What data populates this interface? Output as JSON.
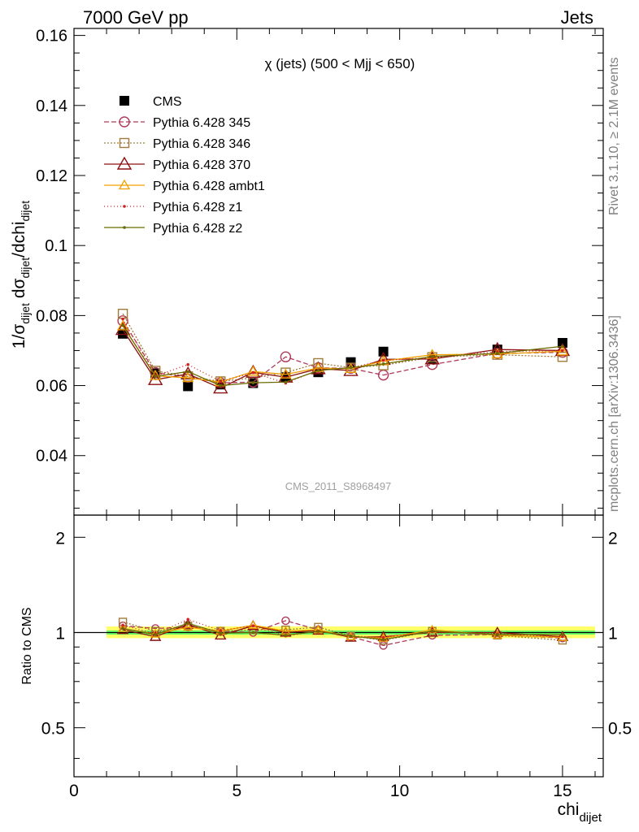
{
  "header": {
    "left": "7000 GeV pp",
    "right": "Jets",
    "side_right_top": "Rivet 3.1.10, ≥ 2.1M events",
    "side_right_bottom": "mcplots.cern.ch [arXiv:1306.3436]"
  },
  "plot_title": "χ (jets) (500 < Mjj <  650)",
  "watermark": "CMS_2011_S8968497",
  "colors": {
    "band_yellow": "#ffff66",
    "band_green": "#66ff66"
  },
  "chart_data": [
    {
      "type": "line",
      "ylabel_parts": {
        "a": "1/σ",
        "a_sub": "dijet",
        "b": " dσ",
        "b_sub": "dijet",
        "c": "/dchi",
        "c_sub": "dijet"
      },
      "xlim": [
        0,
        16.25
      ],
      "ylim": [
        0.023,
        0.162
      ],
      "yticks": [
        0.04,
        0.06,
        0.08,
        0.1,
        0.12,
        0.14,
        0.16
      ],
      "ytick_labels": [
        "0.04",
        "0.06",
        "0.08",
        "0.1",
        "0.12",
        "0.14",
        "0.16"
      ],
      "x": [
        1.5,
        2.5,
        3.5,
        4.5,
        5.5,
        6.5,
        7.5,
        8.5,
        9.5,
        11,
        13,
        15
      ],
      "series": [
        {
          "name": "CMS",
          "color": "#000000",
          "marker": "square-filled",
          "dash": "none",
          "values": [
            0.0748,
            0.0635,
            0.0598,
            0.0603,
            0.0607,
            0.0624,
            0.0638,
            0.0667,
            0.0697,
            0.0675,
            0.0703,
            0.0722
          ]
        },
        {
          "name": "Pythia 6.428 345",
          "color": "#b03a58",
          "marker": "circle-open",
          "dash": "6,3",
          "values": [
            0.0785,
            0.0637,
            0.0624,
            0.0608,
            0.061,
            0.0682,
            0.0651,
            0.0649,
            0.063,
            0.066,
            0.0692,
            0.0695
          ]
        },
        {
          "name": "Pythia 6.428 346",
          "color": "#a07c3c",
          "marker": "square-open",
          "dash": "2,2",
          "values": [
            0.0805,
            0.0642,
            0.0626,
            0.0612,
            0.0622,
            0.0637,
            0.0664,
            0.0651,
            0.0658,
            0.0681,
            0.0688,
            0.0682
          ]
        },
        {
          "name": "Pythia 6.428 370",
          "color": "#8b1010",
          "marker": "triangle-open-large",
          "dash": "none",
          "values": [
            0.076,
            0.0617,
            0.0633,
            0.0593,
            0.0638,
            0.0624,
            0.0648,
            0.0643,
            0.0675,
            0.0676,
            0.0703,
            0.07
          ]
        },
        {
          "name": "Pythia 6.428 ambt1",
          "color": "#f0a000",
          "marker": "triangle-open",
          "dash": "none",
          "values": [
            0.077,
            0.0628,
            0.0622,
            0.061,
            0.064,
            0.0632,
            0.065,
            0.0648,
            0.067,
            0.0688,
            0.069,
            0.0698
          ]
        },
        {
          "name": "Pythia 6.428 z1",
          "color": "#d42020",
          "marker": "dot",
          "dash": "1,3",
          "values": [
            0.079,
            0.0627,
            0.066,
            0.0612,
            0.0637,
            0.0607,
            0.0644,
            0.0651,
            0.0672,
            0.068,
            0.0697,
            0.07
          ]
        },
        {
          "name": "Pythia 6.428 z2",
          "color": "#6b6b00",
          "marker": "dot",
          "dash": "none",
          "values": [
            0.0772,
            0.0626,
            0.064,
            0.06,
            0.0608,
            0.061,
            0.0643,
            0.0651,
            0.0662,
            0.0683,
            0.0692,
            0.0712
          ]
        }
      ]
    },
    {
      "type": "line",
      "ylabel": "Ratio to CMS",
      "xlabel_main": "chi",
      "xlabel_sub": "dijet",
      "xlim": [
        0,
        16.25
      ],
      "ylim": [
        0.35,
        2.35
      ],
      "log_y": true,
      "yticks": [
        0.5,
        1,
        2
      ],
      "ytick_labels": [
        "0.5",
        "1",
        "2"
      ],
      "xticks": [
        0,
        5,
        10,
        15
      ],
      "xtick_labels": [
        "0",
        "5",
        "10",
        "15"
      ],
      "x": [
        1.5,
        2.5,
        3.5,
        4.5,
        5.5,
        6.5,
        7.5,
        8.5,
        9.5,
        11,
        13,
        15
      ],
      "band_x": [
        1.0,
        16.0
      ],
      "band_yellow": [
        0.96,
        1.045
      ],
      "band_green": [
        0.985,
        1.015
      ],
      "series": [
        {
          "name": "Pythia 6.428 345",
          "values": [
            1.05,
            1.03,
            1.04,
            1.01,
            1.0,
            1.09,
            1.02,
            0.97,
            0.91,
            0.98,
            0.985,
            0.96
          ]
        },
        {
          "name": "Pythia 6.428 346",
          "values": [
            1.08,
            1.01,
            1.05,
            1.01,
            1.02,
            1.02,
            1.04,
            0.975,
            0.945,
            1.01,
            0.98,
            0.945
          ]
        },
        {
          "name": "Pythia 6.428 370",
          "values": [
            1.02,
            0.97,
            1.06,
            0.98,
            1.05,
            1.0,
            1.015,
            0.965,
            0.97,
            1.0,
            1.0,
            0.97
          ]
        },
        {
          "name": "Pythia 6.428 ambt1",
          "values": [
            1.03,
            0.99,
            1.04,
            1.01,
            1.055,
            1.01,
            1.02,
            0.97,
            0.96,
            1.02,
            0.98,
            0.965
          ]
        },
        {
          "name": "Pythia 6.428 z1",
          "values": [
            1.055,
            0.99,
            1.1,
            1.015,
            1.05,
            0.975,
            1.01,
            0.975,
            0.965,
            1.005,
            0.99,
            0.97
          ]
        },
        {
          "name": "Pythia 6.428 z2",
          "values": [
            1.03,
            0.985,
            1.07,
            0.995,
            1.0,
            0.98,
            1.008,
            0.975,
            0.95,
            1.01,
            0.985,
            0.985
          ]
        }
      ]
    }
  ]
}
